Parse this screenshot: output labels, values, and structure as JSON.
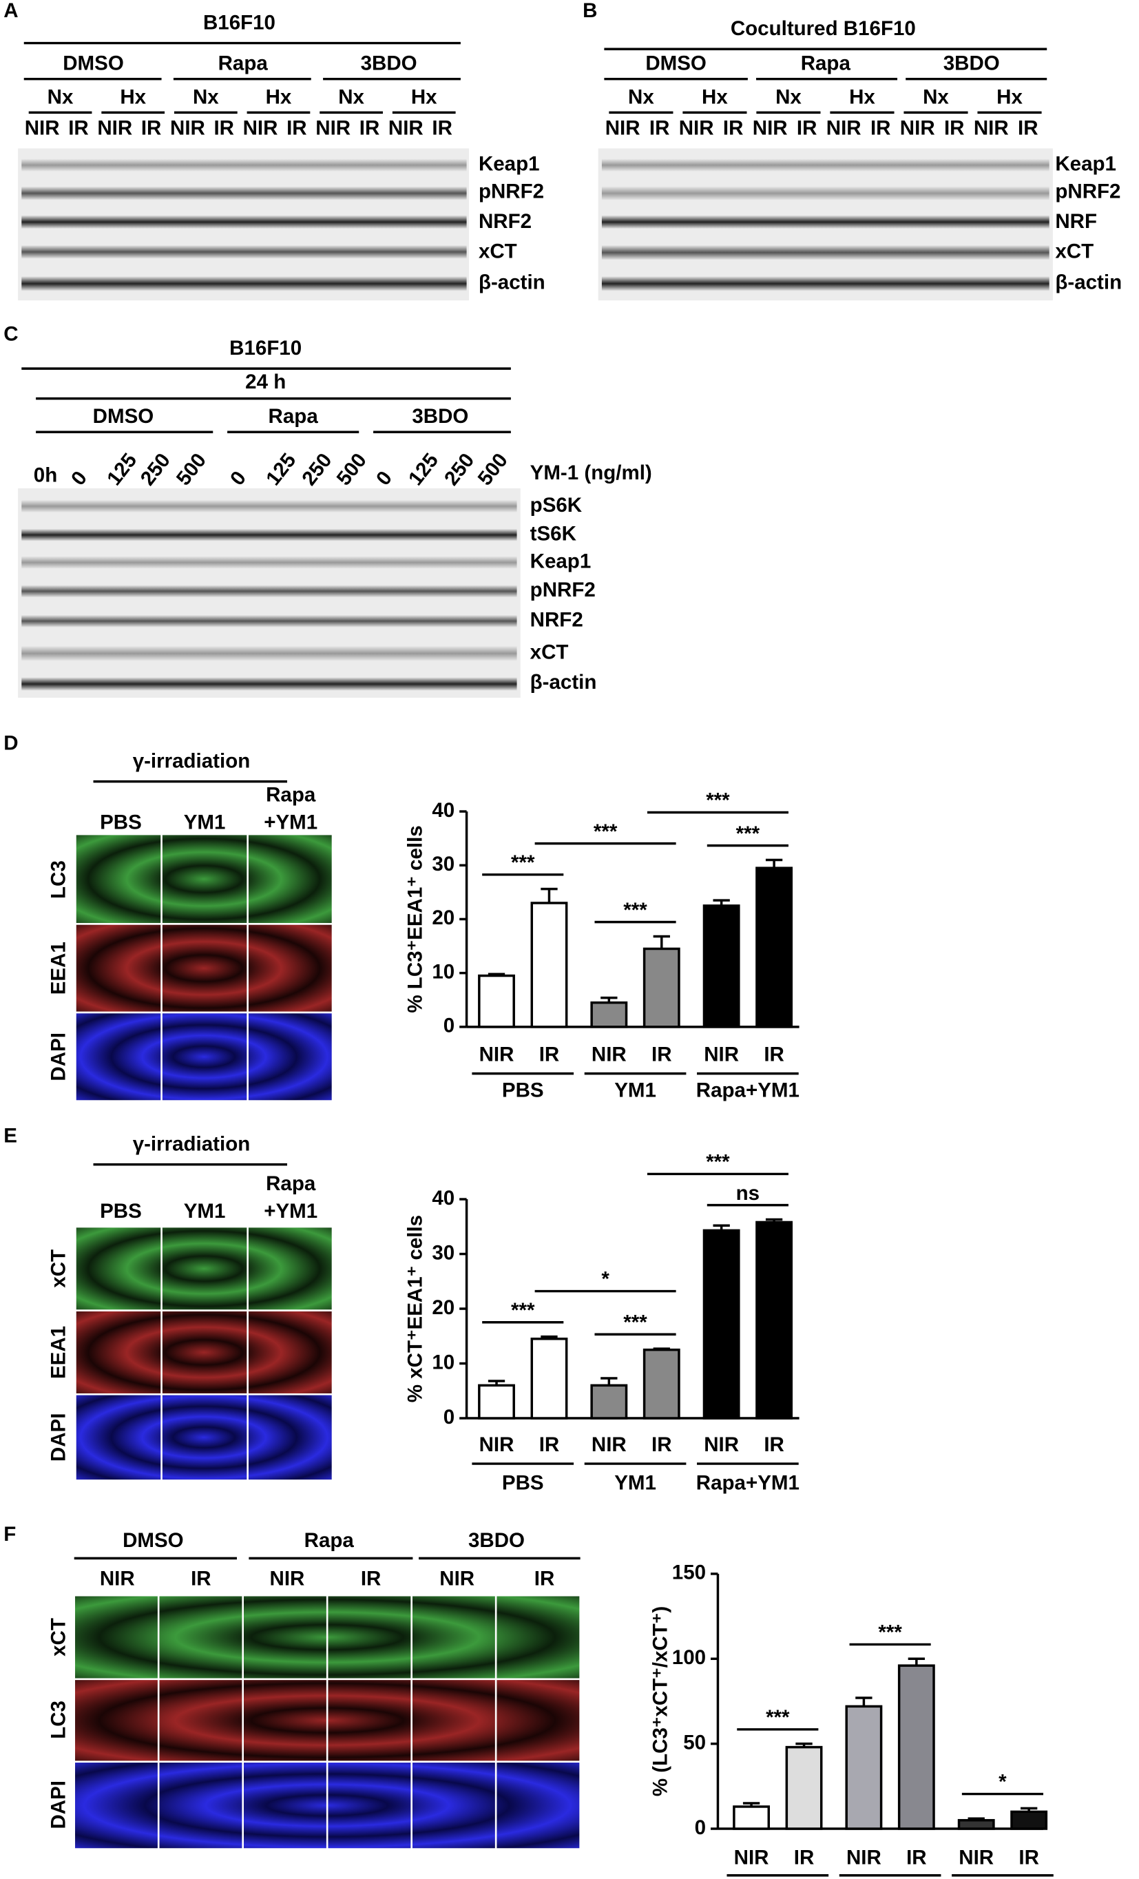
{
  "figure": {
    "panel_a": {
      "label": "A",
      "title": "B16F10",
      "treatments": [
        "DMSO",
        "Rapa",
        "3BDO"
      ],
      "conditions": [
        "Nx",
        "Hx",
        "Nx",
        "Hx",
        "Nx",
        "Hx"
      ],
      "lanes": [
        "NIR",
        "IR",
        "NIR",
        "IR",
        "NIR",
        "IR",
        "NIR",
        "IR",
        "NIR",
        "IR",
        "NIR",
        "IR"
      ],
      "proteins": [
        "Keap1",
        "pNRF2",
        "NRF2",
        "xCT",
        "β-actin"
      ]
    },
    "panel_b": {
      "label": "B",
      "title": "Cocultured B16F10",
      "treatments": [
        "DMSO",
        "Rapa",
        "3BDO"
      ],
      "conditions": [
        "Nx",
        "Hx",
        "Nx",
        "Hx",
        "Nx",
        "Hx"
      ],
      "lanes": [
        "NIR",
        "IR",
        "NIR",
        "IR",
        "NIR",
        "IR",
        "NIR",
        "IR",
        "NIR",
        "IR",
        "NIR",
        "IR"
      ],
      "proteins": [
        "Keap1",
        "pNRF2",
        "NRF",
        "xCT",
        "β-actin"
      ]
    },
    "panel_c": {
      "label": "C",
      "title": "B16F10",
      "time": "24 h",
      "treatments": [
        "DMSO",
        "Rapa",
        "3BDO"
      ],
      "lanes": [
        "0h",
        "0",
        "125",
        "250",
        "500",
        "0",
        "125",
        "250",
        "500",
        "0",
        "125",
        "250",
        "500"
      ],
      "lane_axis": "YM-1 (ng/ml)",
      "proteins": [
        "pS6K",
        "tS6K",
        "Keap1",
        "pNRF2",
        "NRF2",
        "xCT",
        "β-actin"
      ]
    },
    "panel_d": {
      "label": "D",
      "header": "γ-irradiation",
      "columns": [
        [
          "PBS"
        ],
        [
          "YM1"
        ],
        [
          "Rapa",
          "+YM1"
        ]
      ],
      "stains": [
        "LC3",
        "EEA1",
        "DAPI"
      ],
      "stain_colors": [
        "#2db82d",
        "#e8303a",
        "#1a1ae6"
      ]
    },
    "panel_e": {
      "label": "E",
      "header": "γ-irradiation",
      "columns": [
        [
          "PBS"
        ],
        [
          "YM1"
        ],
        [
          "Rapa",
          "+YM1"
        ]
      ],
      "stains": [
        "xCT",
        "EEA1",
        "DAPI"
      ],
      "stain_colors": [
        "#2db82d",
        "#e8303a",
        "#1a1ae6"
      ]
    },
    "panel_f": {
      "label": "F",
      "treatments": [
        "DMSO",
        "Rapa",
        "3BDO"
      ],
      "lanes": [
        "NIR",
        "IR",
        "NIR",
        "IR",
        "NIR",
        "IR"
      ],
      "stains": [
        "xCT",
        "LC3",
        "DAPI"
      ],
      "stain_colors": [
        "#2db82d",
        "#e8303a",
        "#1a1ae6"
      ]
    }
  },
  "chart_data": [
    {
      "type": "bar",
      "ylabel": "% LC3⁺EEA1⁺ cells",
      "categories": [
        "NIR",
        "IR",
        "NIR",
        "IR",
        "NIR",
        "IR"
      ],
      "groups": [
        "PBS",
        "YM1",
        "Rapa+YM1"
      ],
      "values": [
        9.5,
        23,
        4.5,
        14.5,
        22.5,
        29.5
      ],
      "errors": [
        0.3,
        2.6,
        0.9,
        2.3,
        1,
        1.5
      ],
      "colors": [
        "#ffffff",
        "#ffffff",
        "#888888",
        "#888888",
        "#000000",
        "#000000"
      ],
      "ylim": [
        0,
        40
      ],
      "yticks": [
        0,
        10,
        20,
        30,
        40
      ],
      "annotations": [
        {
          "label": "***",
          "span": [
            0,
            1
          ]
        },
        {
          "label": "***",
          "span": [
            2,
            3
          ]
        },
        {
          "label": "***",
          "span": [
            1,
            3
          ]
        },
        {
          "label": "***",
          "span": [
            4,
            5
          ]
        },
        {
          "label": "***",
          "span": [
            3,
            5
          ]
        }
      ]
    },
    {
      "type": "bar",
      "ylabel": "% xCT⁺EEA1⁺ cells",
      "categories": [
        "NIR",
        "IR",
        "NIR",
        "IR",
        "NIR",
        "IR"
      ],
      "groups": [
        "PBS",
        "YM1",
        "Rapa+YM1"
      ],
      "values": [
        6,
        14.5,
        6,
        12.5,
        34.3,
        35.8
      ],
      "errors": [
        0.8,
        0.4,
        1.3,
        0.2,
        0.9,
        0.5
      ],
      "colors": [
        "#ffffff",
        "#ffffff",
        "#888888",
        "#888888",
        "#000000",
        "#000000"
      ],
      "ylim": [
        0,
        40
      ],
      "yticks": [
        0,
        10,
        20,
        30,
        40
      ],
      "annotations": [
        {
          "label": "***",
          "span": [
            0,
            1
          ]
        },
        {
          "label": "***",
          "span": [
            2,
            3
          ]
        },
        {
          "label": "*",
          "span": [
            1,
            3
          ]
        },
        {
          "label": "ns",
          "span": [
            4,
            5
          ]
        },
        {
          "label": "***",
          "span": [
            3,
            5
          ]
        }
      ]
    },
    {
      "type": "bar",
      "ylabel": "% (LC3⁺xCT⁺/xCT⁺)",
      "categories": [
        "NIR",
        "IR",
        "NIR",
        "IR",
        "NIR",
        "IR"
      ],
      "groups": [
        "DMSO",
        "Rapa",
        "3BDO"
      ],
      "values": [
        13,
        48,
        72,
        96,
        5,
        10
      ],
      "errors": [
        2,
        2,
        5,
        4,
        1,
        2
      ],
      "colors": [
        "#ffffff",
        "#dddddd",
        "#a8a8b0",
        "#88888f",
        "#333333",
        "#111111"
      ],
      "ylim": [
        0,
        150
      ],
      "yticks": [
        0,
        50,
        100,
        150
      ],
      "annotations": [
        {
          "label": "***",
          "span": [
            0,
            1
          ]
        },
        {
          "label": "***",
          "span": [
            2,
            3
          ]
        },
        {
          "label": "*",
          "span": [
            4,
            5
          ]
        }
      ]
    }
  ]
}
